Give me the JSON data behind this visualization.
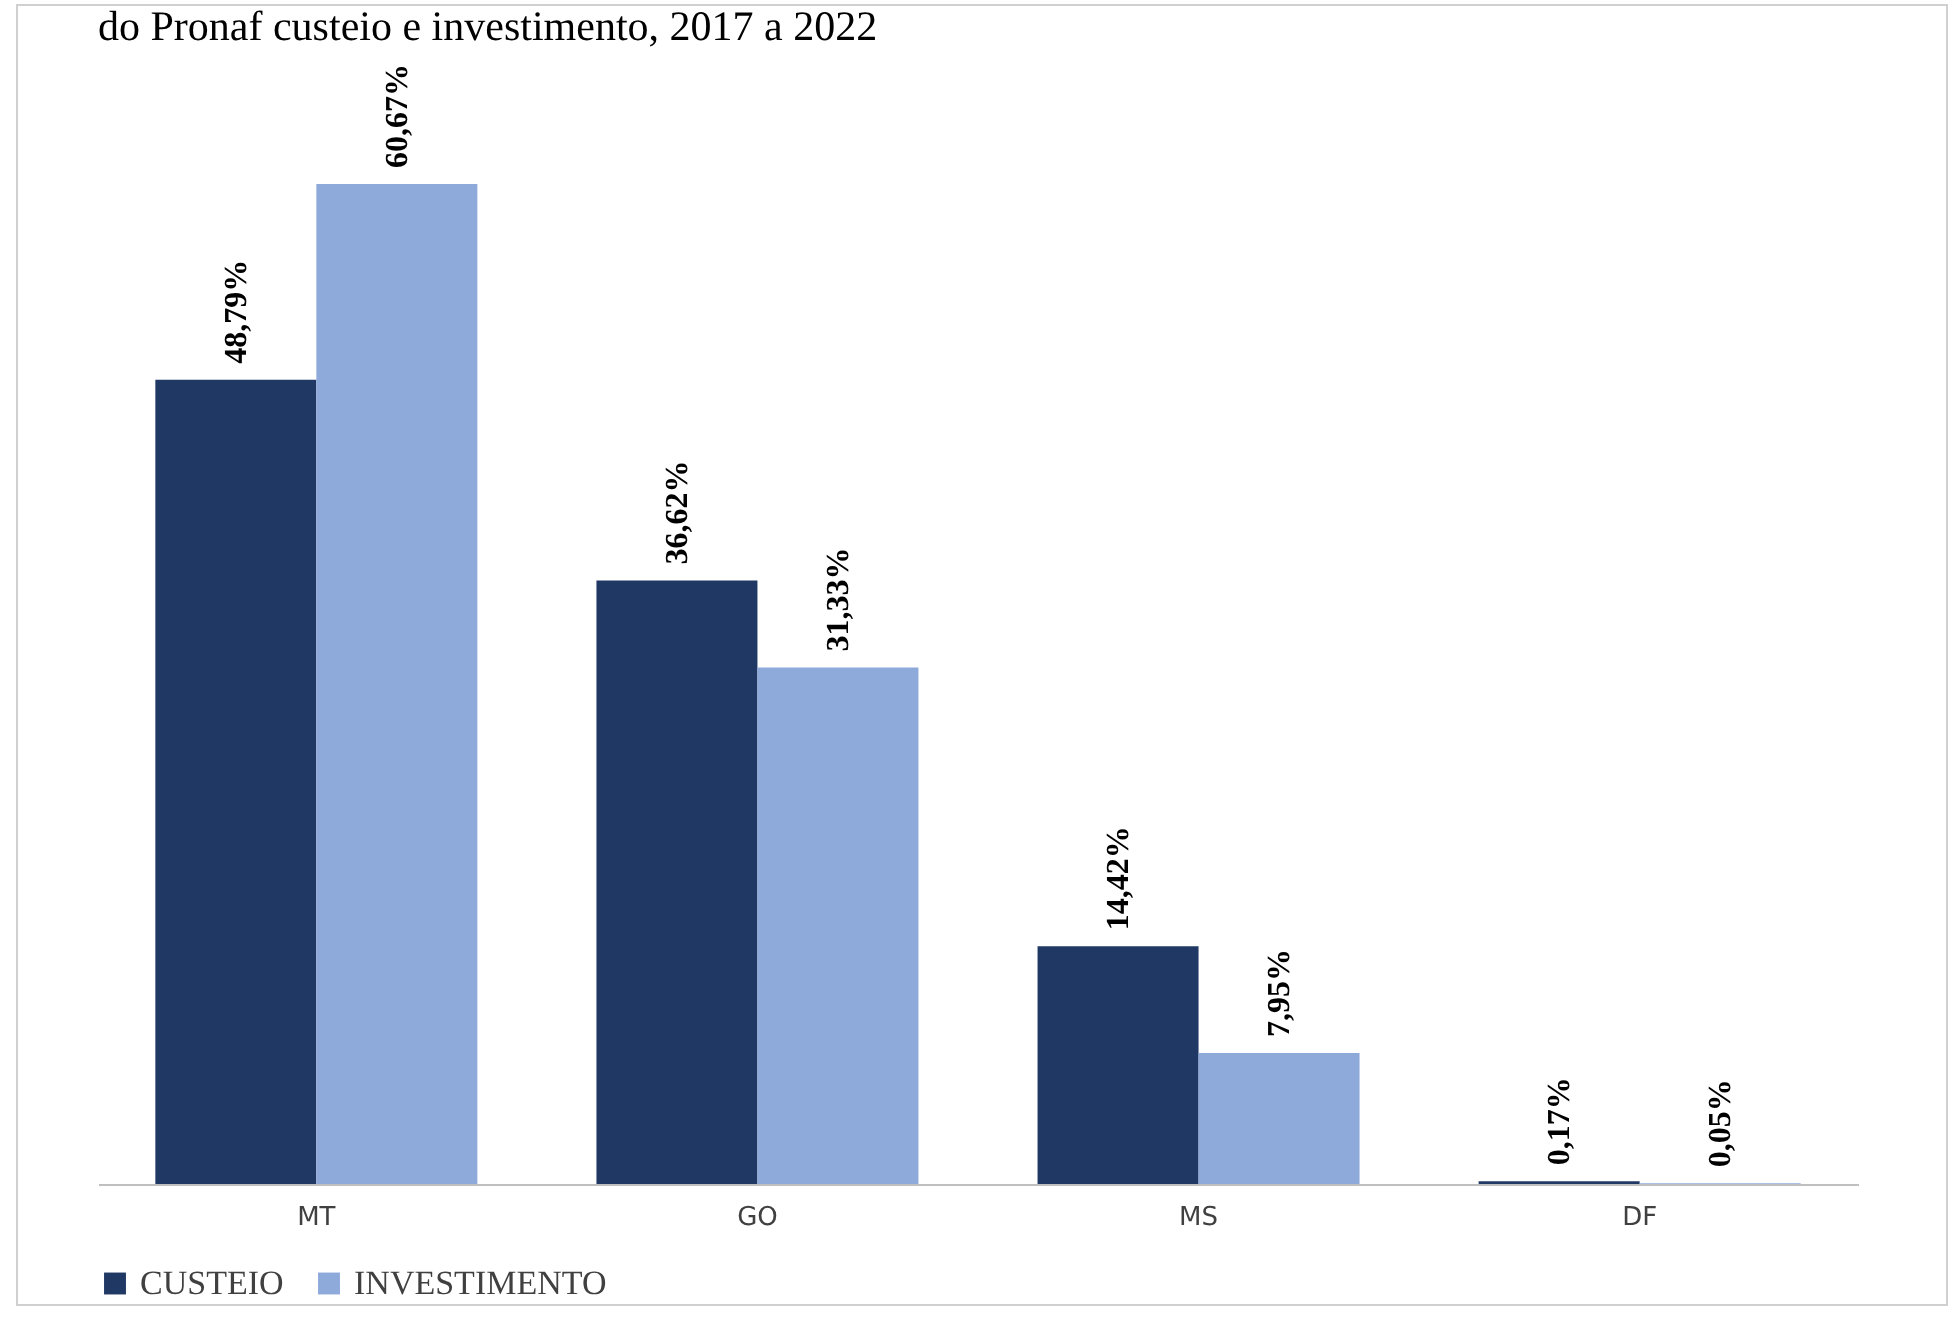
{
  "chart_data": {
    "type": "bar",
    "title": "do Pronaf custeio e investimento, 2017 a 2022",
    "categories": [
      "MT",
      "GO",
      "MS",
      "DF"
    ],
    "series": [
      {
        "name": "CUSTEIO",
        "color": "#1f3864",
        "values": [
          48.79,
          36.62,
          14.42,
          0.17
        ],
        "value_labels": [
          "48,79%",
          "36,62%",
          "14,42%",
          "0,17%"
        ]
      },
      {
        "name": "INVESTIMENTO",
        "color": "#8eaadb",
        "values": [
          60.67,
          31.33,
          7.95,
          0.05
        ],
        "value_labels": [
          "60,67%",
          "31,33%",
          "7,95%",
          "0,05%"
        ]
      }
    ],
    "legend": "bottom"
  }
}
